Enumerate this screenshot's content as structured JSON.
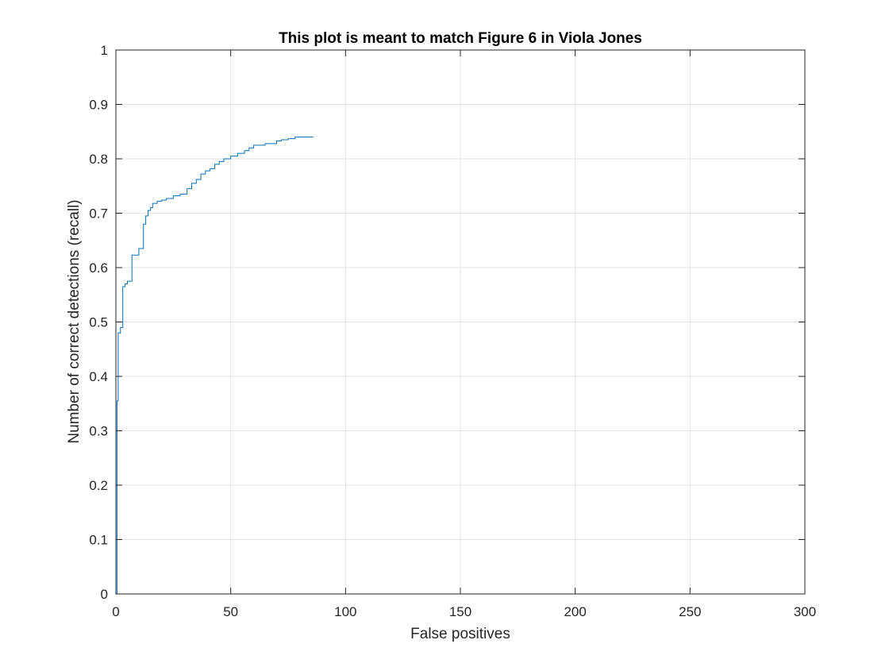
{
  "chart_data": {
    "type": "line",
    "title": "This plot is meant to match Figure 6 in Viola Jones",
    "xlabel": "False positives",
    "ylabel": "Number of correct detections (recall)",
    "xlim": [
      0,
      300
    ],
    "ylim": [
      0,
      1
    ],
    "xticks": [
      0,
      50,
      100,
      150,
      200,
      250,
      300
    ],
    "yticks": [
      0,
      0.1,
      0.2,
      0.3,
      0.4,
      0.5,
      0.6,
      0.7,
      0.8,
      0.9,
      1
    ],
    "grid": true,
    "step": true,
    "color": "#0072bd",
    "series": [
      {
        "x": [
          0,
          0.5,
          1,
          2,
          3,
          4,
          5,
          7,
          10,
          12,
          13,
          14,
          15,
          16,
          18,
          20,
          22,
          25,
          28,
          31,
          33,
          35,
          37,
          39,
          41,
          43,
          45,
          47,
          50,
          53,
          56,
          58,
          60,
          65,
          70,
          72,
          75,
          78,
          82,
          86
        ],
        "y": [
          0,
          0.355,
          0.48,
          0.49,
          0.565,
          0.57,
          0.575,
          0.623,
          0.635,
          0.68,
          0.695,
          0.705,
          0.71,
          0.718,
          0.722,
          0.724,
          0.727,
          0.732,
          0.735,
          0.745,
          0.755,
          0.762,
          0.772,
          0.778,
          0.782,
          0.79,
          0.795,
          0.8,
          0.805,
          0.81,
          0.815,
          0.82,
          0.825,
          0.828,
          0.833,
          0.835,
          0.837,
          0.84,
          0.84,
          0.84
        ]
      }
    ]
  }
}
